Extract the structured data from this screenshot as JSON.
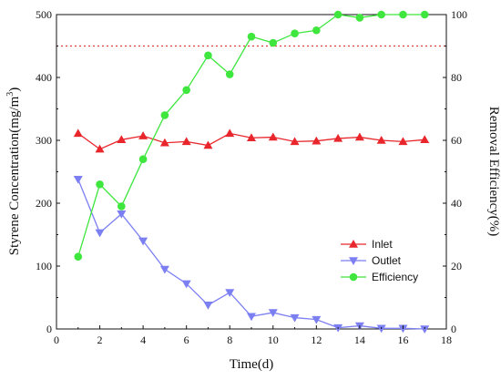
{
  "chart_data": {
    "type": "line",
    "xlabel": "Time(d)",
    "ylabel_left_prefix": "Styrene Concentration(mg/m",
    "ylabel_left_sup": "3",
    "ylabel_left_suffix": ")",
    "ylabel_right": "Removal Efficiency(%)",
    "xlim": [
      0,
      18
    ],
    "ylim_left": [
      0,
      500
    ],
    "ylim_right": [
      0,
      100
    ],
    "x_ticks": [
      0,
      2,
      4,
      6,
      8,
      10,
      12,
      14,
      16,
      18
    ],
    "y_left_ticks": [
      0,
      100,
      200,
      300,
      400,
      500
    ],
    "y_right_ticks": [
      0,
      20,
      40,
      60,
      80,
      100
    ],
    "reference_line": {
      "axis": "right",
      "value": 90,
      "color": "#e53935",
      "style": "dotted"
    },
    "legend_position": "lower-right",
    "x": [
      1,
      2,
      3,
      4,
      5,
      6,
      7,
      8,
      9,
      10,
      11,
      12,
      13,
      14,
      15,
      16,
      17
    ],
    "series": [
      {
        "name": "Inlet",
        "axis": "left",
        "color": "#e8262b",
        "marker": "triangle-up",
        "values": [
          311,
          286,
          301,
          307,
          296,
          298,
          292,
          311,
          304,
          305,
          298,
          299,
          303,
          305,
          300,
          298,
          301
        ]
      },
      {
        "name": "Outlet",
        "axis": "left",
        "color": "#7b7ff2",
        "marker": "triangle-down",
        "values": [
          238,
          153,
          183,
          140,
          95,
          72,
          38,
          58,
          20,
          26,
          18,
          15,
          2,
          5,
          1,
          1,
          0
        ]
      },
      {
        "name": "Efficiency",
        "axis": "right",
        "color": "#3ee63e",
        "marker": "circle",
        "values": [
          23,
          46,
          39,
          54,
          68,
          76,
          87,
          81,
          93,
          91,
          94,
          95,
          100,
          99,
          100,
          100,
          100
        ]
      }
    ]
  }
}
